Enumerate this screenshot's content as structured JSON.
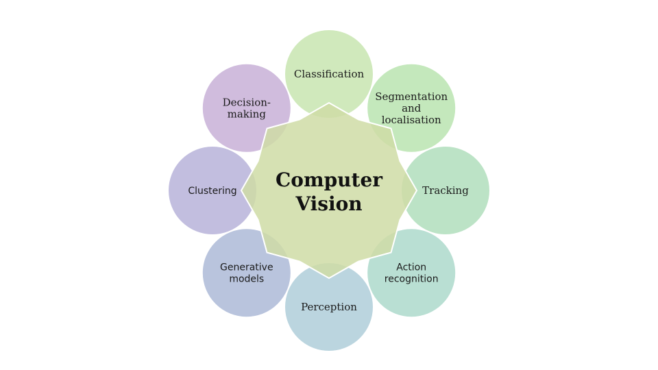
{
  "center": {
    "lines": [
      "Computer",
      "Vision"
    ],
    "fill": "#cfdca6"
  },
  "nodes": [
    {
      "id": "classification",
      "lines": [
        "Classification"
      ],
      "fill": "#c3e3a9",
      "font": "serif"
    },
    {
      "id": "segmentation",
      "lines": [
        "Segmentation",
        "and",
        "localisation"
      ],
      "fill": "#b4e2a9",
      "font": "serif"
    },
    {
      "id": "tracking",
      "lines": [
        "Tracking"
      ],
      "fill": "#a9dbb6",
      "font": "serif"
    },
    {
      "id": "action-recognition",
      "lines": [
        "Action",
        "recognition"
      ],
      "fill": "#a5d6c6",
      "font": "sans"
    },
    {
      "id": "perception",
      "lines": [
        "Perception"
      ],
      "fill": "#a8c9d6",
      "font": "serif"
    },
    {
      "id": "generative-models",
      "lines": [
        "Generative",
        "models"
      ],
      "fill": "#a5b4d3",
      "font": "sans"
    },
    {
      "id": "clustering",
      "lines": [
        "Clustering"
      ],
      "fill": "#b1acd6",
      "font": "sans"
    },
    {
      "id": "decision-making",
      "lines": [
        "Decision-",
        "making"
      ],
      "fill": "#c3a9d4",
      "font": "serif"
    }
  ]
}
